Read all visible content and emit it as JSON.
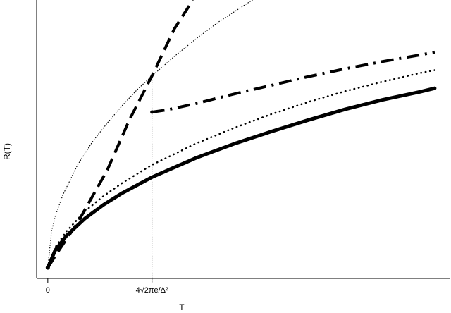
{
  "chart_data": {
    "type": "line",
    "title": "",
    "xlabel": "T",
    "ylabel": "R(T)",
    "xlim": [
      -0.15,
      5.4
    ],
    "ylim": [
      -0.15,
      3.7
    ],
    "grid": false,
    "legend": "none",
    "x_ticks": [
      {
        "value": 0,
        "label": "0"
      },
      {
        "value": 1.4,
        "label": "4√2πe/Δ²"
      }
    ],
    "threshold_x": 1.4,
    "series": [
      {
        "style": "solid-thick",
        "points": [
          [
            0,
            0
          ],
          [
            0.1,
            0.24
          ],
          [
            0.25,
            0.44
          ],
          [
            0.5,
            0.68
          ],
          [
            0.75,
            0.87
          ],
          [
            1.0,
            1.03
          ],
          [
            1.4,
            1.25
          ],
          [
            2.0,
            1.52
          ],
          [
            2.5,
            1.71
          ],
          [
            3.0,
            1.88
          ],
          [
            3.5,
            2.04
          ],
          [
            4.0,
            2.19
          ],
          [
            4.5,
            2.32
          ],
          [
            5.0,
            2.43
          ],
          [
            5.2,
            2.48
          ]
        ]
      },
      {
        "style": "dotted",
        "points": [
          [
            0,
            0
          ],
          [
            0.1,
            0.28
          ],
          [
            0.25,
            0.5
          ],
          [
            0.5,
            0.78
          ],
          [
            0.75,
            0.99
          ],
          [
            1.0,
            1.17
          ],
          [
            1.4,
            1.42
          ],
          [
            2.0,
            1.72
          ],
          [
            2.5,
            1.93
          ],
          [
            3.0,
            2.12
          ],
          [
            3.5,
            2.29
          ],
          [
            4.0,
            2.44
          ],
          [
            4.5,
            2.57
          ],
          [
            5.0,
            2.69
          ],
          [
            5.2,
            2.73
          ]
        ]
      },
      {
        "style": "dotted-thin",
        "points": [
          [
            0,
            0
          ],
          [
            0.05,
            0.5
          ],
          [
            0.1,
            0.71
          ],
          [
            0.2,
            1.0
          ],
          [
            0.4,
            1.42
          ],
          [
            0.6,
            1.74
          ],
          [
            0.8,
            2.0
          ],
          [
            1.0,
            2.24
          ],
          [
            1.2,
            2.46
          ],
          [
            1.4,
            2.65
          ],
          [
            1.7,
            2.92
          ],
          [
            2.0,
            3.17
          ],
          [
            2.3,
            3.4
          ],
          [
            2.6,
            3.6
          ],
          [
            2.75,
            3.7
          ]
        ]
      },
      {
        "style": "dashed-thick",
        "points": [
          [
            0,
            0
          ],
          [
            0.15,
            0.24
          ],
          [
            0.4,
            0.62
          ],
          [
            0.8,
            1.35
          ],
          [
            1.1,
            2.05
          ],
          [
            1.4,
            2.65
          ],
          [
            1.7,
            3.3
          ],
          [
            1.95,
            3.7
          ]
        ]
      },
      {
        "style": "dash-dot-thick",
        "points": [
          [
            1.4,
            2.15
          ],
          [
            1.6,
            2.18
          ],
          [
            2.0,
            2.27
          ],
          [
            2.5,
            2.4
          ],
          [
            3.0,
            2.52
          ],
          [
            3.5,
            2.64
          ],
          [
            4.0,
            2.75
          ],
          [
            4.5,
            2.85
          ],
          [
            5.0,
            2.94
          ],
          [
            5.2,
            2.98
          ]
        ]
      }
    ]
  }
}
